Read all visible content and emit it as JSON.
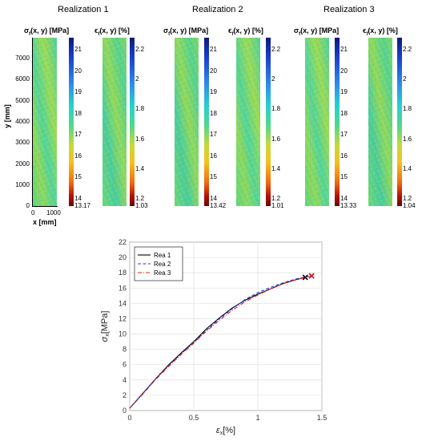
{
  "realizations": [
    {
      "title": "Realization 1",
      "stress_label": "σ",
      "stress_sub": "f",
      "stress_rest": "(x, y) [MPa]",
      "strain_label": "ϵ",
      "strain_sub": "f",
      "strain_rest": "(x, y) [%]",
      "stress_ticks": [
        "21",
        "20",
        "19",
        "18",
        "17",
        "16",
        "15",
        "14",
        "13.17"
      ],
      "strain_ticks": [
        "2.2",
        "2",
        "1.8",
        "1.6",
        "1.4",
        "1.2",
        "1.03"
      ]
    },
    {
      "title": "Realization 2",
      "stress_label": "σ",
      "stress_sub": "f",
      "stress_rest": "(x, y) [MPa]",
      "strain_label": "ϵ",
      "strain_sub": "f",
      "strain_rest": "(x, y) [%]",
      "stress_ticks": [
        "21",
        "20",
        "19",
        "18",
        "17",
        "16",
        "15",
        "14",
        "13.42"
      ],
      "strain_ticks": [
        "2.2",
        "2",
        "1.8",
        "1.6",
        "1.4",
        "1.2",
        "1.01"
      ]
    },
    {
      "title": "Realization 3",
      "stress_label": "σ",
      "stress_sub": "f",
      "stress_rest": "(x, y) [MPa]",
      "strain_label": "ϵ",
      "strain_sub": "f",
      "strain_rest": "(x, y) [%]",
      "stress_ticks": [
        "21",
        "20",
        "19",
        "18",
        "17",
        "16",
        "15",
        "14",
        "13.33"
      ],
      "strain_ticks": [
        "2.2",
        "2",
        "1.8",
        "1.6",
        "1.4",
        "1.2",
        "1.04"
      ]
    }
  ],
  "field_axes": {
    "y_label": "y [mm]",
    "x_label": "x [mm]",
    "y_ticks": [
      "7000",
      "6000",
      "5000",
      "4000",
      "3000",
      "2000",
      "1000",
      "0"
    ],
    "x_ticks": [
      "0",
      "1000"
    ]
  },
  "chart_data": {
    "type": "line",
    "xlabel": "ε",
    "xlabel_sub": "x",
    "xlabel_unit": "[%]",
    "ylabel": "σ",
    "ylabel_sub": "x",
    "ylabel_unit": "[MPa]",
    "xlim": [
      0,
      1.5
    ],
    "ylim": [
      0,
      22
    ],
    "x_ticks": [
      0,
      0.5,
      1,
      1.5
    ],
    "x_tick_labels": [
      "0",
      "0.5",
      "1",
      "1.5"
    ],
    "y_ticks": [
      0,
      2,
      4,
      6,
      8,
      10,
      12,
      14,
      16,
      18,
      20,
      22
    ],
    "grid": true,
    "legend_position": "top-left",
    "series": [
      {
        "name": "Rea 1",
        "color": "#000000",
        "dash": "solid",
        "end_marker": "x",
        "points": [
          [
            0,
            0.3
          ],
          [
            0.1,
            2.2
          ],
          [
            0.2,
            4.1
          ],
          [
            0.3,
            5.9
          ],
          [
            0.4,
            7.5
          ],
          [
            0.5,
            9.0
          ],
          [
            0.6,
            10.7
          ],
          [
            0.7,
            12.1
          ],
          [
            0.8,
            13.4
          ],
          [
            0.9,
            14.4
          ],
          [
            1.0,
            15.2
          ],
          [
            1.1,
            15.9
          ],
          [
            1.2,
            16.6
          ],
          [
            1.3,
            17.1
          ],
          [
            1.37,
            17.4
          ]
        ]
      },
      {
        "name": "Rea 2",
        "color": "#1f3fd8",
        "dash": "dashed",
        "end_marker": "x",
        "points": [
          [
            0,
            0.3
          ],
          [
            0.1,
            2.2
          ],
          [
            0.2,
            4.1
          ],
          [
            0.3,
            5.8
          ],
          [
            0.4,
            7.4
          ],
          [
            0.5,
            8.9
          ],
          [
            0.6,
            10.5
          ],
          [
            0.7,
            12.0
          ],
          [
            0.8,
            13.3
          ],
          [
            0.9,
            14.5
          ],
          [
            1.0,
            15.4
          ],
          [
            1.1,
            16.1
          ],
          [
            1.2,
            16.7
          ],
          [
            1.3,
            17.2
          ],
          [
            1.42,
            17.6
          ]
        ]
      },
      {
        "name": "Rea 3",
        "color": "#d81f1f",
        "dash": "dashdot",
        "end_marker": "x",
        "points": [
          [
            0,
            0.3
          ],
          [
            0.1,
            2.1
          ],
          [
            0.2,
            4.0
          ],
          [
            0.3,
            5.7
          ],
          [
            0.4,
            7.3
          ],
          [
            0.5,
            8.8
          ],
          [
            0.6,
            10.4
          ],
          [
            0.7,
            11.8
          ],
          [
            0.8,
            13.1
          ],
          [
            0.9,
            14.2
          ],
          [
            1.0,
            15.1
          ],
          [
            1.1,
            15.9
          ],
          [
            1.2,
            16.6
          ],
          [
            1.3,
            17.1
          ],
          [
            1.42,
            17.6
          ]
        ]
      }
    ]
  }
}
